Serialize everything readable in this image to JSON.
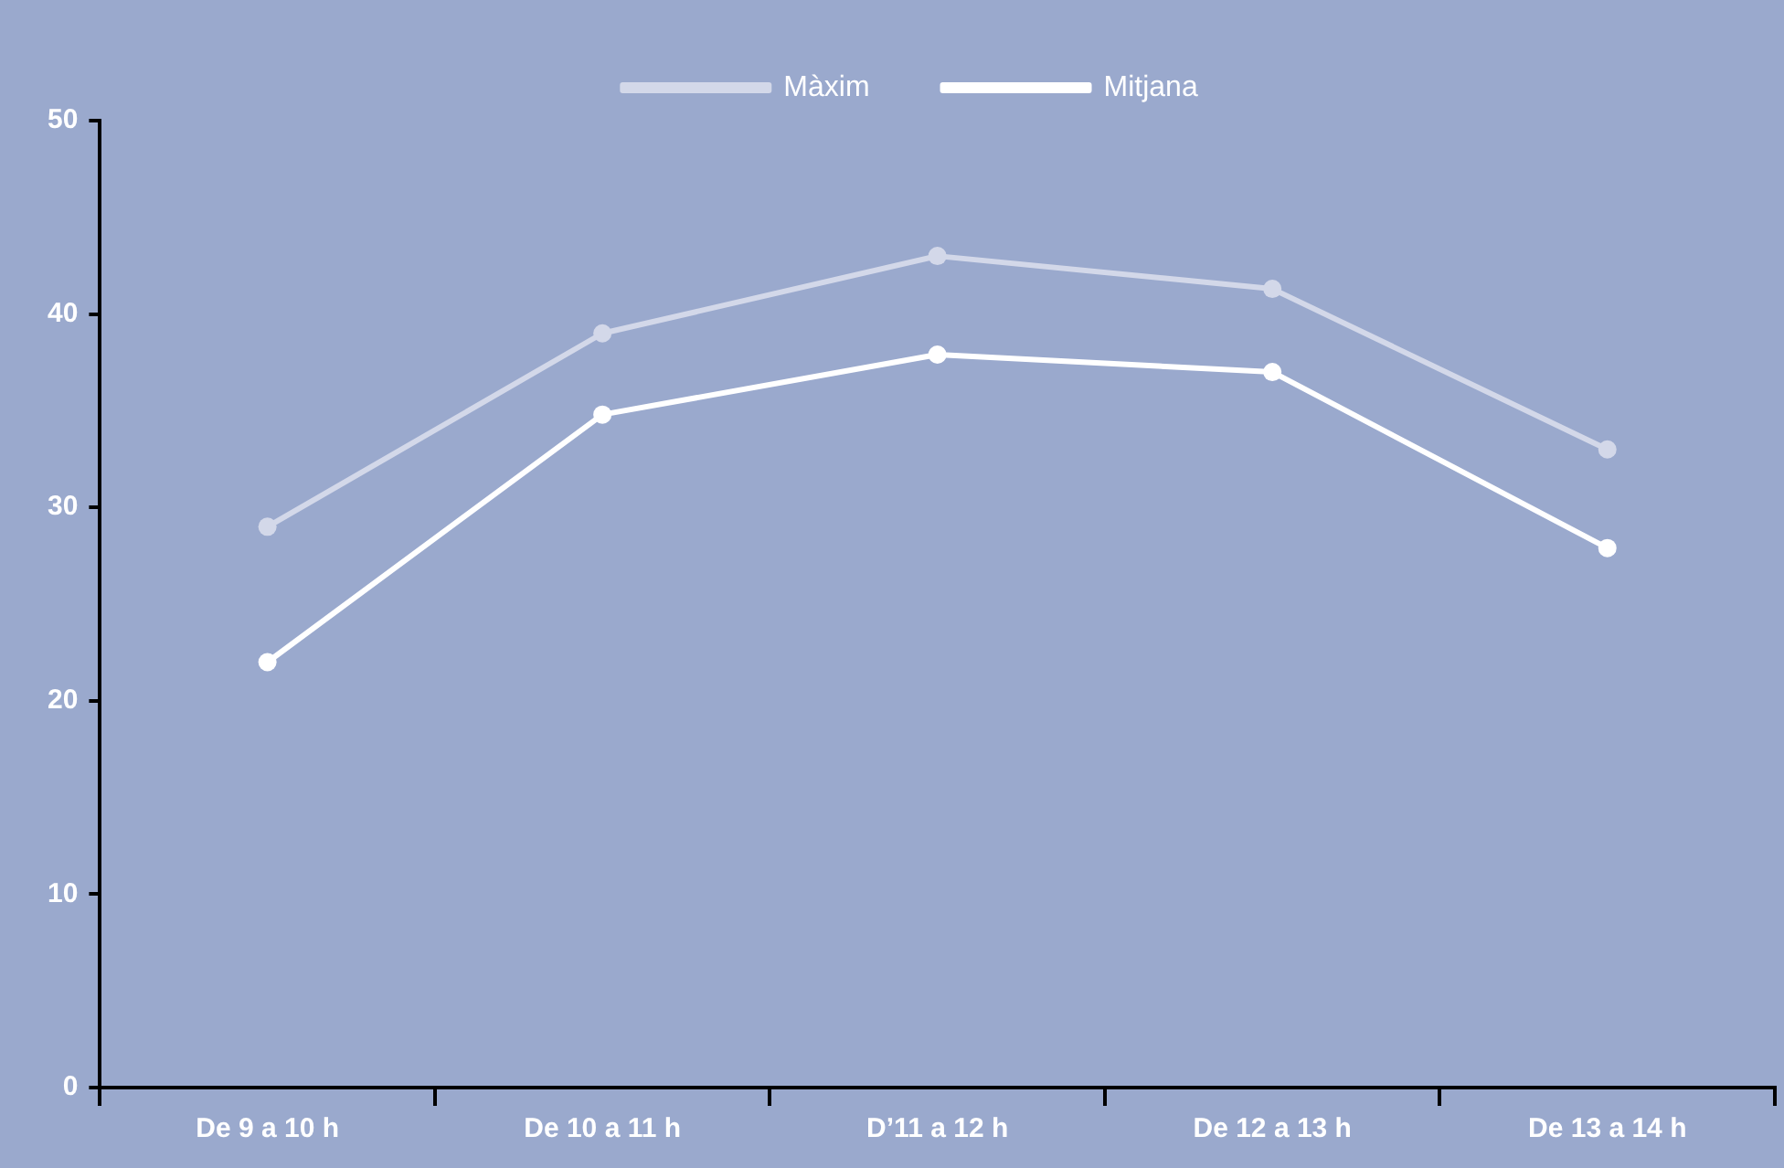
{
  "chart_data": {
    "type": "line",
    "categories": [
      "De 9 a 10 h",
      "De 10 a 11 h",
      "D’11 a 12 h",
      "De 12 a 13 h",
      "De 13 a 14 h"
    ],
    "series": [
      {
        "name": "Màxim",
        "color": "#d3d8e9",
        "values": [
          29,
          39,
          43,
          41.3,
          33
        ]
      },
      {
        "name": "Mitjana",
        "color": "#ffffff",
        "values": [
          22,
          34.8,
          37.9,
          37,
          27.9
        ]
      }
    ],
    "ylim": [
      0,
      50
    ],
    "yticks": [
      0,
      10,
      20,
      30,
      40,
      50
    ],
    "grid": false,
    "legend": "top",
    "marker": "circle",
    "line_style": "solid"
  }
}
